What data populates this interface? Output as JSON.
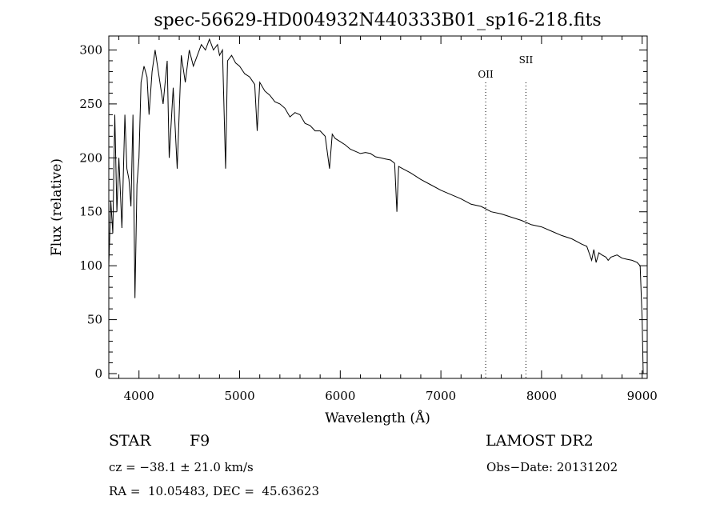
{
  "chart_data": {
    "type": "line",
    "title": "spec-56629-HD004932N440333B01_sp16-218.fits",
    "xlabel": "Wavelength (Å)",
    "ylabel": "Flux (relative)",
    "xlim": [
      3700,
      9050
    ],
    "ylim": [
      0,
      310
    ],
    "xticks": [
      4000,
      5000,
      6000,
      7000,
      8000,
      9000
    ],
    "yticks": [
      0,
      50,
      100,
      150,
      200,
      250,
      300
    ],
    "grid": false,
    "series": [
      {
        "x": [
          3700,
          3720,
          3740,
          3760,
          3780,
          3800,
          3830,
          3860,
          3880,
          3900,
          3920,
          3940,
          3960,
          3980,
          4000,
          4020,
          4050,
          4080,
          4100,
          4130,
          4160,
          4200,
          4240,
          4280,
          4300,
          4340,
          4380,
          4420,
          4460,
          4500,
          4540,
          4580,
          4620,
          4660,
          4700,
          4740,
          4780,
          4800,
          4830,
          4861,
          4880,
          4920,
          4960,
          5000,
          5050,
          5100,
          5150,
          5175,
          5200,
          5250,
          5300,
          5350,
          5400,
          5450,
          5500,
          5550,
          5600,
          5650,
          5700,
          5750,
          5800,
          5850,
          5893,
          5920,
          5950,
          6000,
          6050,
          6100,
          6150,
          6200,
          6250,
          6300,
          6350,
          6400,
          6450,
          6500,
          6540,
          6563,
          6580,
          6620,
          6700,
          6800,
          6900,
          7000,
          7100,
          7200,
          7300,
          7400,
          7500,
          7600,
          7700,
          7800,
          7900,
          8000,
          8100,
          8200,
          8300,
          8400,
          8450,
          8498,
          8520,
          8542,
          8570,
          8600,
          8640,
          8662,
          8690,
          8750,
          8800,
          8850,
          8900,
          8950,
          8980,
          9000,
          9010
        ],
        "values": [
          100,
          160,
          130,
          240,
          150,
          200,
          135,
          240,
          190,
          180,
          155,
          240,
          70,
          175,
          200,
          270,
          285,
          275,
          240,
          280,
          300,
          275,
          250,
          290,
          200,
          265,
          190,
          295,
          270,
          300,
          285,
          295,
          305,
          300,
          310,
          300,
          305,
          295,
          300,
          190,
          290,
          295,
          288,
          285,
          278,
          275,
          268,
          225,
          270,
          262,
          258,
          252,
          250,
          246,
          238,
          242,
          240,
          232,
          230,
          225,
          225,
          220,
          190,
          222,
          218,
          215,
          212,
          208,
          206,
          204,
          205,
          204,
          201,
          200,
          199,
          198,
          195,
          150,
          192,
          190,
          186,
          180,
          175,
          170,
          166,
          162,
          157,
          155,
          150,
          148,
          145,
          142,
          138,
          136,
          132,
          128,
          125,
          120,
          118,
          105,
          115,
          103,
          112,
          110,
          108,
          105,
          108,
          110,
          107,
          106,
          105,
          103,
          100,
          50,
          0
        ]
      }
    ],
    "annotations": [
      {
        "label": "OII",
        "x": 7445,
        "line": "dotted"
      },
      {
        "label": "SII",
        "x": 7845,
        "line": "dotted"
      }
    ]
  },
  "info": {
    "object_class": "STAR",
    "subclass": "F9",
    "survey": "LAMOST DR2",
    "cz": "cz = −38.1 ± 21.0 km/s",
    "obs_date": "Obs−Date: 20131202",
    "coords": "RA =  10.05483, DEC =  45.63623"
  }
}
